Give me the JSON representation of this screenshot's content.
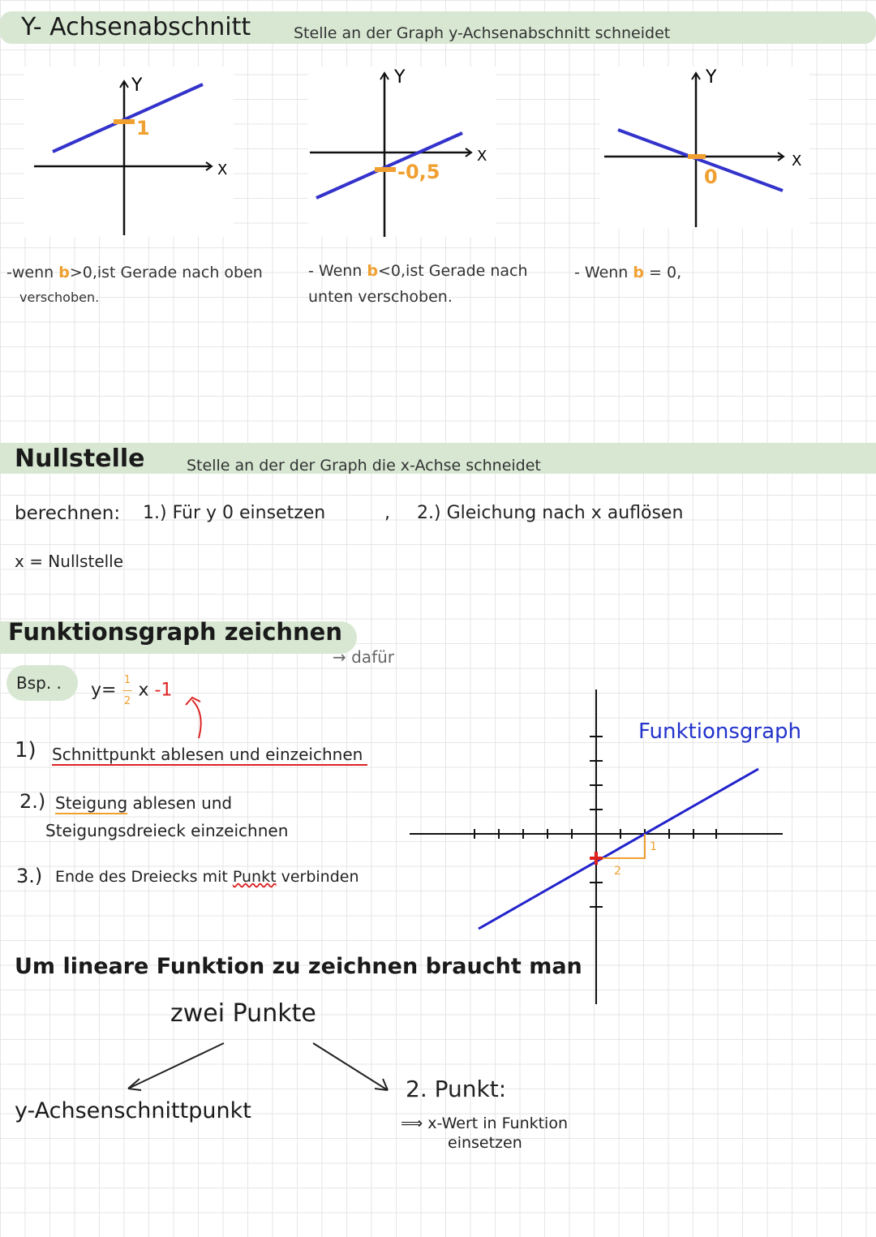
{
  "section1": {
    "title": "Y- Achsenabschnitt",
    "subtitle": "Stelle an der Graph y-Achsenabschnitt schneidet",
    "graphs": [
      {
        "label": "1",
        "y_label": "Y",
        "x_label": "X"
      },
      {
        "label": "-0,5",
        "y_label": "Y",
        "x_label": "X"
      },
      {
        "label": "0",
        "y_label": "Y",
        "x_label": "X"
      }
    ],
    "notes": [
      {
        "pre": "-wenn ",
        "b": "b",
        "post": ">0,ist Gerade nach oben",
        "line2": "verschoben."
      },
      {
        "pre": "- Wenn ",
        "b": "b",
        "post": "<0,ist Gerade nach",
        "line2": "unten verschoben."
      },
      {
        "pre": "- Wenn ",
        "b": "b",
        "post": " = 0,",
        "line2": ""
      }
    ]
  },
  "section2": {
    "title": "Nullstelle",
    "subtitle": "Stelle an der der Graph die x-Achse schneidet",
    "berechnen": "berechnen:",
    "step1": "1.) Für y  0 einsetzen",
    "sep": ",",
    "step2": "2.) Gleichung nach x auflösen",
    "result": "x = Nullstelle"
  },
  "section3": {
    "title": "Funktionsgraph zeichnen",
    "dafuer": "→ dafür",
    "bsp": "Bsp. .",
    "eq_y": "y=",
    "eq_num": "1",
    "eq_den": "2",
    "eq_x": "x",
    "eq_b": "-1",
    "steps": [
      {
        "num": "1)",
        "text": "Schnittpunkt ablesen und einzeichnen"
      },
      {
        "num": "2.)",
        "u": "Steigung",
        "text": " ablesen und",
        "line2": "Steigungsdreieck einzeichnen"
      },
      {
        "num": "3.)",
        "text": "Ende des Dreiecks mit ",
        "u": "Punkt",
        "post": " verbinden"
      }
    ],
    "graph_label": "Funktionsgraph",
    "tri_dy": "1",
    "tri_dx": "2",
    "need": "Um lineare Funktion zu zeichnen braucht man",
    "two_points": "zwei Punkte",
    "left": "y-Achsenschnittpunkt",
    "right_title": "2. Punkt:",
    "right_text1": "⟹ x-Wert in Funktion",
    "right_text2": "einsetzen"
  },
  "colors": {
    "highlight": "#d7e7d2",
    "line": "#3333cc",
    "orange": "#f0a030",
    "red": "#d22222"
  }
}
